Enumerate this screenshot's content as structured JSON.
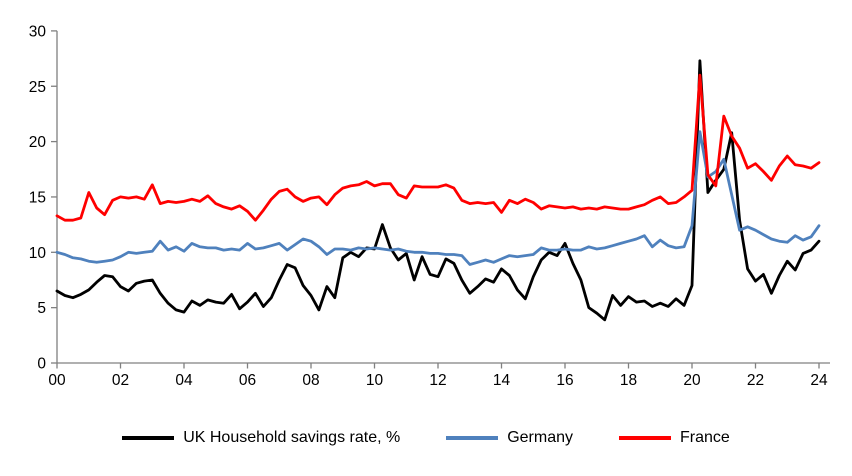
{
  "chart_data": {
    "type": "line",
    "title": "",
    "grid": false,
    "legend_position": "bottom",
    "axis_color": "#808080",
    "background_color": "#ffffff",
    "x_axis": {
      "tick_labels": [
        "00",
        "02",
        "04",
        "06",
        "08",
        "10",
        "12",
        "14",
        "16",
        "18",
        "20",
        "22",
        "24"
      ],
      "tick_years": [
        0,
        2,
        4,
        6,
        8,
        10,
        12,
        14,
        16,
        18,
        20,
        22,
        24
      ],
      "unit": "year (quarterly data, 2000Q1 to 2024Q1)"
    },
    "y_axis": {
      "tick_labels": [
        "0",
        "5",
        "10",
        "15",
        "20",
        "25",
        "30"
      ],
      "ticks": [
        0,
        5,
        10,
        15,
        20,
        25,
        30
      ],
      "range": [
        0,
        30
      ]
    },
    "points_per_year": 4,
    "series": [
      {
        "name": "UK Household savings rate, %",
        "color": "#000000",
        "values": [
          6.5,
          6.1,
          5.9,
          6.2,
          6.6,
          7.3,
          7.9,
          7.8,
          6.9,
          6.5,
          7.2,
          7.4,
          7.5,
          6.3,
          5.4,
          4.8,
          4.6,
          5.6,
          5.2,
          5.7,
          5.5,
          5.4,
          6.2,
          4.9,
          5.5,
          6.3,
          5.1,
          5.9,
          7.5,
          8.9,
          8.6,
          7.0,
          6.1,
          4.8,
          6.9,
          5.9,
          9.5,
          10.0,
          9.6,
          10.4,
          10.3,
          12.5,
          10.4,
          9.3,
          9.9,
          7.5,
          9.6,
          8.0,
          7.8,
          9.4,
          9.0,
          7.5,
          6.3,
          6.9,
          7.6,
          7.3,
          8.5,
          7.9,
          6.6,
          5.8,
          7.8,
          9.3,
          10.0,
          9.7,
          10.8,
          9.0,
          7.5,
          5.0,
          4.5,
          3.9,
          6.1,
          5.2,
          6.0,
          5.5,
          5.6,
          5.1,
          5.4,
          5.1,
          5.8,
          5.2,
          7.0,
          27.3,
          15.4,
          16.5,
          17.5,
          20.8,
          12.9,
          8.5,
          7.4,
          8.0,
          6.3,
          7.9,
          9.2,
          8.4,
          9.9,
          10.2,
          11.0
        ]
      },
      {
        "name": "Germany",
        "color": "#4f81bd",
        "values": [
          10.0,
          9.8,
          9.5,
          9.4,
          9.2,
          9.1,
          9.2,
          9.3,
          9.6,
          10.0,
          9.9,
          10.0,
          10.1,
          11.0,
          10.2,
          10.5,
          10.1,
          10.8,
          10.5,
          10.4,
          10.4,
          10.2,
          10.3,
          10.2,
          10.8,
          10.3,
          10.4,
          10.6,
          10.8,
          10.2,
          10.7,
          11.2,
          11.0,
          10.5,
          9.8,
          10.3,
          10.3,
          10.2,
          10.4,
          10.3,
          10.4,
          10.3,
          10.2,
          10.3,
          10.1,
          10.0,
          10.0,
          9.9,
          9.9,
          9.8,
          9.8,
          9.7,
          8.9,
          9.1,
          9.3,
          9.1,
          9.4,
          9.7,
          9.6,
          9.7,
          9.8,
          10.4,
          10.2,
          10.2,
          10.3,
          10.2,
          10.2,
          10.5,
          10.3,
          10.4,
          10.6,
          10.8,
          11.0,
          11.2,
          11.5,
          10.5,
          11.1,
          10.6,
          10.4,
          10.5,
          12.4,
          20.9,
          16.8,
          17.3,
          18.4,
          15.2,
          12.0,
          12.3,
          12.0,
          11.6,
          11.2,
          11.0,
          10.9,
          11.5,
          11.1,
          11.4,
          12.4
        ]
      },
      {
        "name": "France",
        "color": "#ff0000",
        "values": [
          13.3,
          12.9,
          12.9,
          13.1,
          15.4,
          14.0,
          13.4,
          14.7,
          15.0,
          14.9,
          15.0,
          14.8,
          16.1,
          14.4,
          14.6,
          14.5,
          14.6,
          14.8,
          14.6,
          15.1,
          14.4,
          14.1,
          13.9,
          14.2,
          13.7,
          12.9,
          13.8,
          14.8,
          15.5,
          15.7,
          15.0,
          14.6,
          14.9,
          15.0,
          14.3,
          15.2,
          15.8,
          16.0,
          16.1,
          16.4,
          16.0,
          16.2,
          16.2,
          15.2,
          14.9,
          16.0,
          15.9,
          15.9,
          15.9,
          16.1,
          15.8,
          14.7,
          14.4,
          14.5,
          14.4,
          14.5,
          13.6,
          14.7,
          14.4,
          14.8,
          14.5,
          13.9,
          14.2,
          14.1,
          14.0,
          14.1,
          13.9,
          14.0,
          13.9,
          14.1,
          14.0,
          13.9,
          13.9,
          14.1,
          14.3,
          14.7,
          15.0,
          14.4,
          14.5,
          15.0,
          15.6,
          26.0,
          17.0,
          16.0,
          22.3,
          20.5,
          19.4,
          17.6,
          18.0,
          17.3,
          16.5,
          17.8,
          18.7,
          17.9,
          17.8,
          17.6,
          18.1
        ]
      }
    ]
  },
  "legend": {
    "items": [
      {
        "label": "UK Household savings rate, %"
      },
      {
        "label": "Germany"
      },
      {
        "label": "France"
      }
    ]
  }
}
